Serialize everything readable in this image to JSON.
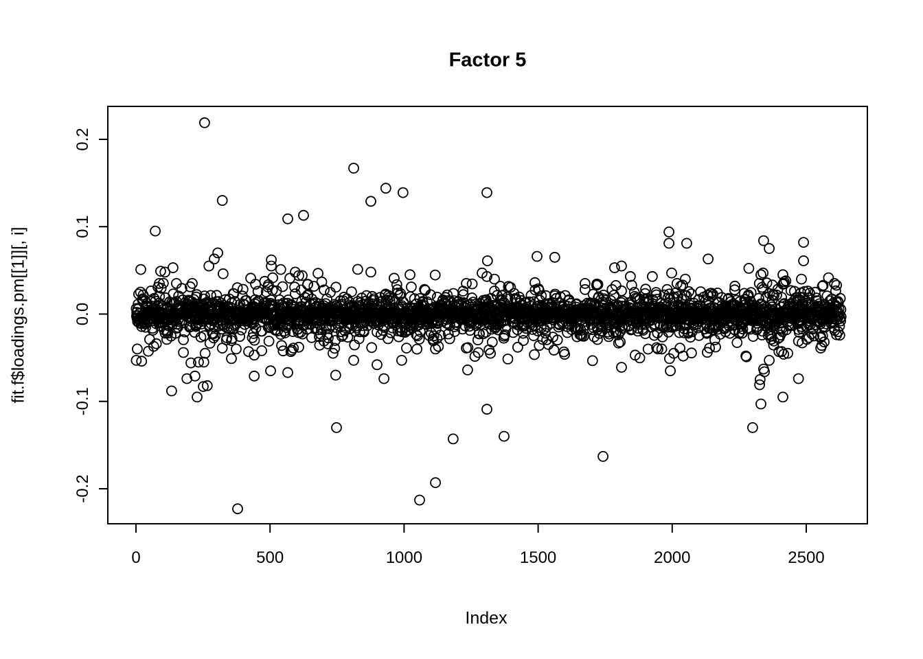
{
  "chart_data": {
    "type": "scatter",
    "title": "Factor 5",
    "xlabel": "Index",
    "ylabel": "fit.f$loadings.pm[[1]][, i]",
    "xticks": [
      0,
      500,
      1000,
      1500,
      2000,
      2500
    ],
    "xtick_labels": [
      "0",
      "500",
      "1000",
      "1500",
      "2000",
      "2500"
    ],
    "yticks": [
      -0.2,
      -0.1,
      0.0,
      0.1,
      0.2
    ],
    "ytick_labels": [
      "-0.2",
      "-0.1",
      "0.0",
      "0.1",
      "0.2"
    ],
    "xlim": [
      -105,
      2728
    ],
    "ylim": [
      -0.2401,
      0.2377
    ],
    "grid": false,
    "legend": "none",
    "marker": {
      "shape": "open-circle",
      "radius_px": 7,
      "stroke_px": 1.8,
      "color": "#000000"
    },
    "background": "#ffffff",
    "n_points": 2630,
    "x_index_range": [
      1,
      2630
    ],
    "band": {
      "distribution": "laplace",
      "center": 0,
      "scale": 0.009,
      "clip": 0.055,
      "seed": 20
    },
    "outliers": [
      [
        256,
        0.219
      ],
      [
        812,
        0.167
      ],
      [
        932,
        0.144
      ],
      [
        996,
        0.139
      ],
      [
        1309,
        0.139
      ],
      [
        322,
        0.13
      ],
      [
        876,
        0.129
      ],
      [
        625,
        0.113
      ],
      [
        566,
        0.109
      ],
      [
        72,
        0.095
      ],
      [
        1988,
        0.094
      ],
      [
        2341,
        0.084
      ],
      [
        1988,
        0.081
      ],
      [
        2054,
        0.081
      ],
      [
        2490,
        0.082
      ],
      [
        2362,
        0.075
      ],
      [
        305,
        0.07
      ],
      [
        1496,
        0.066
      ],
      [
        1562,
        0.065
      ],
      [
        292,
        0.063
      ],
      [
        2134,
        0.063
      ],
      [
        505,
        0.062
      ],
      [
        1311,
        0.061
      ],
      [
        2490,
        0.061
      ],
      [
        272,
        0.055
      ],
      [
        505,
        0.055
      ],
      [
        1811,
        0.055
      ],
      [
        540,
        0.051
      ],
      [
        18,
        0.051
      ],
      [
        1785,
        0.053
      ],
      [
        138,
        0.053
      ],
      [
        92,
        0.049
      ],
      [
        108,
        0.048
      ],
      [
        594,
        0.048
      ],
      [
        876,
        0.048
      ],
      [
        1291,
        0.047
      ],
      [
        1998,
        0.047
      ],
      [
        2339,
        0.047
      ],
      [
        607,
        0.044
      ],
      [
        620,
        0.044
      ],
      [
        574,
        0.041
      ],
      [
        428,
        0.041
      ],
      [
        963,
        0.041
      ],
      [
        1022,
        0.045
      ],
      [
        1309,
        0.043
      ],
      [
        1337,
        0.04
      ],
      [
        1232,
        0.035
      ],
      [
        1488,
        0.036
      ],
      [
        1501,
        0.029
      ],
      [
        1675,
        0.035
      ],
      [
        1675,
        0.028
      ],
      [
        1844,
        0.043
      ],
      [
        1926,
        0.043
      ],
      [
        2018,
        0.035
      ],
      [
        2049,
        0.04
      ],
      [
        2339,
        0.028
      ],
      [
        2413,
        0.045
      ],
      [
        2416,
        0.035
      ],
      [
        2482,
        0.04
      ],
      [
        2605,
        0.035
      ],
      [
        151,
        0.035
      ],
      [
        87,
        0.035
      ],
      [
        210,
        0.035
      ],
      [
        492,
        0.031
      ],
      [
        1027,
        0.031
      ],
      [
        2234,
        0.032
      ],
      [
        2169,
        0.024
      ],
      [
        1849,
        0.033
      ],
      [
        2613,
        0.033
      ],
      [
        2331,
        0.045
      ],
      [
        2418,
        0.037
      ],
      [
        2456,
        0.026
      ],
      [
        379,
        -0.223
      ],
      [
        1058,
        -0.213
      ],
      [
        1117,
        -0.193
      ],
      [
        1742,
        -0.163
      ],
      [
        1183,
        -0.143
      ],
      [
        1373,
        -0.14
      ],
      [
        748,
        -0.13
      ],
      [
        2300,
        -0.13
      ],
      [
        1309,
        -0.109
      ],
      [
        2331,
        -0.103
      ],
      [
        2413,
        -0.095
      ],
      [
        228,
        -0.095
      ],
      [
        133,
        -0.088
      ],
      [
        251,
        -0.083
      ],
      [
        2326,
        -0.081
      ],
      [
        266,
        -0.082
      ],
      [
        220,
        -0.071
      ],
      [
        190,
        -0.074
      ],
      [
        441,
        -0.071
      ],
      [
        502,
        -0.065
      ],
      [
        566,
        -0.067
      ],
      [
        745,
        -0.07
      ],
      [
        925,
        -0.074
      ],
      [
        899,
        -0.058
      ],
      [
        812,
        -0.053
      ],
      [
        1,
        -0.053
      ],
      [
        21,
        -0.054
      ],
      [
        205,
        -0.056
      ],
      [
        233,
        -0.055
      ],
      [
        253,
        -0.055
      ],
      [
        1237,
        -0.064
      ],
      [
        2344,
        -0.066
      ],
      [
        2471,
        -0.074
      ],
      [
        2328,
        -0.075
      ],
      [
        1993,
        -0.065
      ],
      [
        1811,
        -0.061
      ],
      [
        2362,
        -0.053
      ],
      [
        2341,
        -0.063
      ],
      [
        356,
        -0.051
      ],
      [
        1990,
        -0.051
      ],
      [
        991,
        -0.053
      ],
      [
        5,
        -0.04
      ],
      [
        66,
        -0.037
      ],
      [
        76,
        -0.034
      ],
      [
        115,
        -0.029
      ],
      [
        177,
        -0.044
      ],
      [
        258,
        -0.045
      ],
      [
        322,
        -0.039
      ],
      [
        374,
        -0.04
      ],
      [
        420,
        -0.043
      ],
      [
        441,
        -0.047
      ],
      [
        543,
        -0.036
      ],
      [
        578,
        -0.043
      ],
      [
        587,
        -0.039
      ],
      [
        655,
        -0.027
      ],
      [
        684,
        -0.026
      ],
      [
        701,
        -0.031
      ],
      [
        735,
        -0.045
      ],
      [
        1009,
        -0.039
      ],
      [
        1117,
        -0.04
      ],
      [
        1232,
        -0.039
      ],
      [
        1317,
        -0.041
      ],
      [
        1322,
        -0.045
      ],
      [
        1424,
        -0.038
      ],
      [
        1504,
        -0.036
      ],
      [
        1517,
        -0.029
      ],
      [
        1645,
        -0.026
      ],
      [
        1765,
        -0.023
      ],
      [
        1862,
        -0.047
      ],
      [
        1947,
        -0.04
      ],
      [
        2006,
        -0.045
      ],
      [
        2029,
        -0.039
      ],
      [
        2139,
        -0.039
      ],
      [
        2275,
        -0.048
      ],
      [
        2277,
        -0.049
      ],
      [
        2408,
        -0.043
      ],
      [
        2416,
        -0.046
      ],
      [
        2485,
        -0.033
      ],
      [
        2510,
        -0.027
      ],
      [
        2554,
        -0.039
      ],
      [
        1806,
        -0.032
      ],
      [
        2398,
        -0.043
      ],
      [
        2431,
        -0.045
      ],
      [
        2471,
        -0.031
      ],
      [
        2502,
        -0.029
      ],
      [
        2558,
        -0.036
      ],
      [
        2553,
        -0.027
      ],
      [
        2404,
        -0.024
      ],
      [
        2335,
        -0.024
      ],
      [
        2315,
        -0.018
      ]
    ]
  }
}
